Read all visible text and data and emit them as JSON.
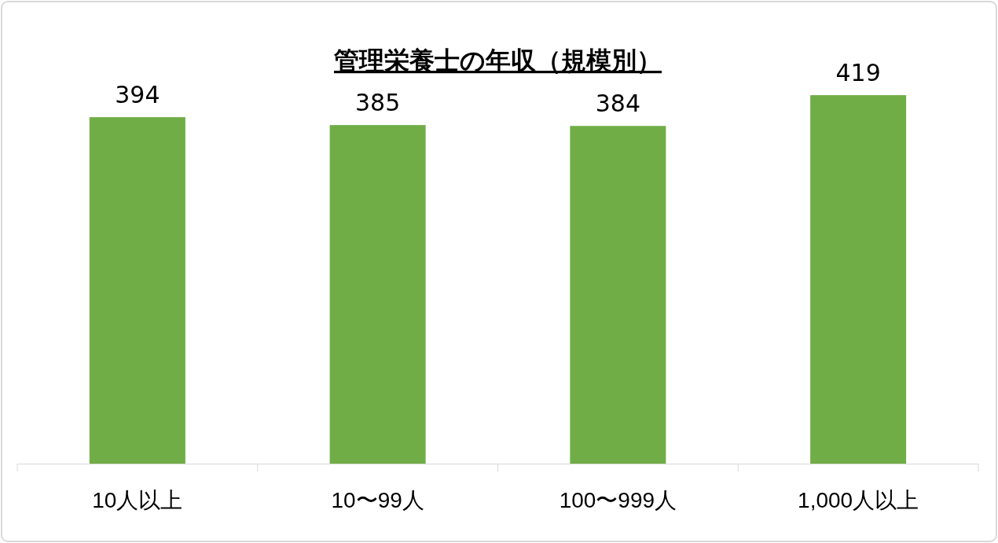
{
  "chart_data": {
    "type": "bar",
    "title": "管理栄養士の年収（規模別）",
    "categories": [
      "10人以上",
      "10〜99人",
      "100〜999人",
      "1,000人以上"
    ],
    "values": [
      394,
      385,
      384,
      419
    ],
    "color": "#70ad47",
    "data_labels": true
  }
}
